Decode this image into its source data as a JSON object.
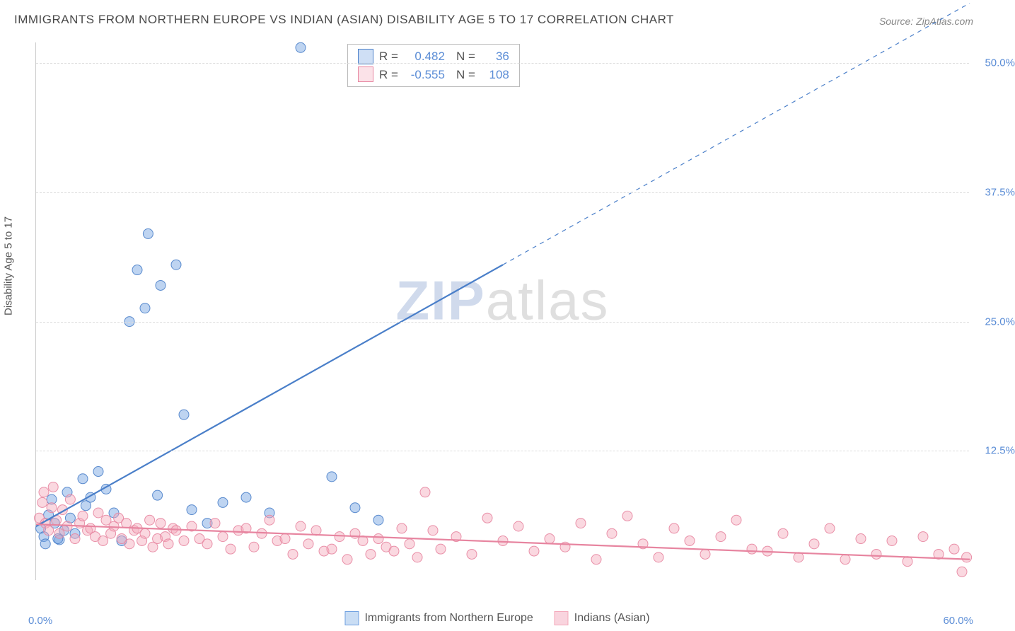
{
  "title": "IMMIGRANTS FROM NORTHERN EUROPE VS INDIAN (ASIAN) DISABILITY AGE 5 TO 17 CORRELATION CHART",
  "source": "Source: ZipAtlas.com",
  "y_axis_label": "Disability Age 5 to 17",
  "x_origin_label": "0.0%",
  "x_max_label": "60.0%",
  "watermark_zip": "ZIP",
  "watermark_atlas": "atlas",
  "chart": {
    "type": "scatter",
    "xlim": [
      0,
      60
    ],
    "ylim": [
      0,
      52
    ],
    "y_ticks": [
      12.5,
      25.0,
      37.5,
      50.0
    ],
    "y_tick_labels": [
      "12.5%",
      "25.0%",
      "37.5%",
      "50.0%"
    ],
    "grid_color": "#dddddd",
    "background_color": "#ffffff",
    "marker_radius": 7,
    "marker_opacity": 0.45,
    "marker_stroke_opacity": 0.9,
    "series": [
      {
        "id": "blue",
        "label": "Immigrants from Northern Europe",
        "color": "#6fa0e0",
        "stroke": "#4a7fc9",
        "R": "0.482",
        "N": "36",
        "trend": {
          "x1": 0,
          "y1": 5.2,
          "x2": 30,
          "y2": 30.5,
          "dash_extend_x": 60,
          "dash_extend_y": 55.8,
          "width": 2.2
        },
        "points": [
          [
            0.3,
            5.0
          ],
          [
            0.5,
            4.2
          ],
          [
            0.8,
            6.3
          ],
          [
            1.0,
            7.8
          ],
          [
            1.2,
            5.5
          ],
          [
            1.5,
            3.9
          ],
          [
            1.8,
            4.8
          ],
          [
            2.0,
            8.5
          ],
          [
            2.2,
            6.0
          ],
          [
            2.5,
            4.5
          ],
          [
            3.0,
            9.8
          ],
          [
            3.2,
            7.2
          ],
          [
            3.5,
            8.0
          ],
          [
            4.0,
            10.5
          ],
          [
            4.5,
            8.8
          ],
          [
            5.0,
            6.5
          ],
          [
            5.5,
            3.8
          ],
          [
            6.0,
            25.0
          ],
          [
            6.5,
            30.0
          ],
          [
            7.0,
            26.3
          ],
          [
            7.2,
            33.5
          ],
          [
            7.8,
            8.2
          ],
          [
            8.0,
            28.5
          ],
          [
            9.0,
            30.5
          ],
          [
            9.5,
            16.0
          ],
          [
            10.0,
            6.8
          ],
          [
            11.0,
            5.5
          ],
          [
            12.0,
            7.5
          ],
          [
            13.5,
            8.0
          ],
          [
            15.0,
            6.5
          ],
          [
            17.0,
            51.5
          ],
          [
            19.0,
            10.0
          ],
          [
            20.5,
            7.0
          ],
          [
            22.0,
            5.8
          ],
          [
            0.6,
            3.5
          ],
          [
            1.4,
            4.0
          ]
        ]
      },
      {
        "id": "pink",
        "label": "Indians (Asian)",
        "color": "#f4a8ba",
        "stroke": "#e785a0",
        "R": "-0.555",
        "N": "108",
        "trend": {
          "x1": 0,
          "y1": 5.4,
          "x2": 60,
          "y2": 2.0,
          "width": 2.2
        },
        "points": [
          [
            0.2,
            6.0
          ],
          [
            0.4,
            7.5
          ],
          [
            0.5,
            8.5
          ],
          [
            0.6,
            5.5
          ],
          [
            0.8,
            4.8
          ],
          [
            1.0,
            7.0
          ],
          [
            1.1,
            9.0
          ],
          [
            1.3,
            5.8
          ],
          [
            1.5,
            4.5
          ],
          [
            1.7,
            6.8
          ],
          [
            2.0,
            5.2
          ],
          [
            2.2,
            7.8
          ],
          [
            2.5,
            4.0
          ],
          [
            2.8,
            5.5
          ],
          [
            3.0,
            6.2
          ],
          [
            3.3,
            4.8
          ],
          [
            3.5,
            5.0
          ],
          [
            3.8,
            4.2
          ],
          [
            4.0,
            6.5
          ],
          [
            4.3,
            3.8
          ],
          [
            4.5,
            5.8
          ],
          [
            4.8,
            4.5
          ],
          [
            5.0,
            5.2
          ],
          [
            5.3,
            6.0
          ],
          [
            5.5,
            4.0
          ],
          [
            5.8,
            5.5
          ],
          [
            6.0,
            3.5
          ],
          [
            6.3,
            4.8
          ],
          [
            6.5,
            5.0
          ],
          [
            6.8,
            3.8
          ],
          [
            7.0,
            4.5
          ],
          [
            7.3,
            5.8
          ],
          [
            7.5,
            3.2
          ],
          [
            7.8,
            4.0
          ],
          [
            8.0,
            5.5
          ],
          [
            8.3,
            4.2
          ],
          [
            8.5,
            3.5
          ],
          [
            8.8,
            5.0
          ],
          [
            9.0,
            4.8
          ],
          [
            9.5,
            3.8
          ],
          [
            10.0,
            5.2
          ],
          [
            10.5,
            4.0
          ],
          [
            11.0,
            3.5
          ],
          [
            11.5,
            5.5
          ],
          [
            12.0,
            4.2
          ],
          [
            12.5,
            3.0
          ],
          [
            13.0,
            4.8
          ],
          [
            13.5,
            5.0
          ],
          [
            14.0,
            3.2
          ],
          [
            14.5,
            4.5
          ],
          [
            15.0,
            5.8
          ],
          [
            15.5,
            3.8
          ],
          [
            16.0,
            4.0
          ],
          [
            16.5,
            2.5
          ],
          [
            17.0,
            5.2
          ],
          [
            17.5,
            3.5
          ],
          [
            18.0,
            4.8
          ],
          [
            18.5,
            2.8
          ],
          [
            19.0,
            3.0
          ],
          [
            19.5,
            4.2
          ],
          [
            20.0,
            2.0
          ],
          [
            20.5,
            4.5
          ],
          [
            21.0,
            3.8
          ],
          [
            21.5,
            2.5
          ],
          [
            22.0,
            4.0
          ],
          [
            22.5,
            3.2
          ],
          [
            23.0,
            2.8
          ],
          [
            23.5,
            5.0
          ],
          [
            24.0,
            3.5
          ],
          [
            24.5,
            2.2
          ],
          [
            25.0,
            8.5
          ],
          [
            25.5,
            4.8
          ],
          [
            26.0,
            3.0
          ],
          [
            27.0,
            4.2
          ],
          [
            28.0,
            2.5
          ],
          [
            29.0,
            6.0
          ],
          [
            30.0,
            3.8
          ],
          [
            31.0,
            5.2
          ],
          [
            32.0,
            2.8
          ],
          [
            33.0,
            4.0
          ],
          [
            34.0,
            3.2
          ],
          [
            35.0,
            5.5
          ],
          [
            36.0,
            2.0
          ],
          [
            37.0,
            4.5
          ],
          [
            38.0,
            6.2
          ],
          [
            39.0,
            3.5
          ],
          [
            40.0,
            2.2
          ],
          [
            41.0,
            5.0
          ],
          [
            42.0,
            3.8
          ],
          [
            43.0,
            2.5
          ],
          [
            44.0,
            4.2
          ],
          [
            45.0,
            5.8
          ],
          [
            46.0,
            3.0
          ],
          [
            47.0,
            2.8
          ],
          [
            48.0,
            4.5
          ],
          [
            49.0,
            2.2
          ],
          [
            50.0,
            3.5
          ],
          [
            51.0,
            5.0
          ],
          [
            52.0,
            2.0
          ],
          [
            53.0,
            4.0
          ],
          [
            54.0,
            2.5
          ],
          [
            55.0,
            3.8
          ],
          [
            56.0,
            1.8
          ],
          [
            57.0,
            4.2
          ],
          [
            58.0,
            2.5
          ],
          [
            59.0,
            3.0
          ],
          [
            59.5,
            0.8
          ],
          [
            59.8,
            2.2
          ]
        ]
      }
    ]
  },
  "bottom_legend": [
    {
      "label": "Immigrants from Northern Europe",
      "fill": "#c9ddf4",
      "stroke": "#6fa0e0"
    },
    {
      "label": "Indians (Asian)",
      "fill": "#f9d4de",
      "stroke": "#f4a8ba"
    }
  ],
  "stats_labels": {
    "R": "R =",
    "N": "N ="
  }
}
